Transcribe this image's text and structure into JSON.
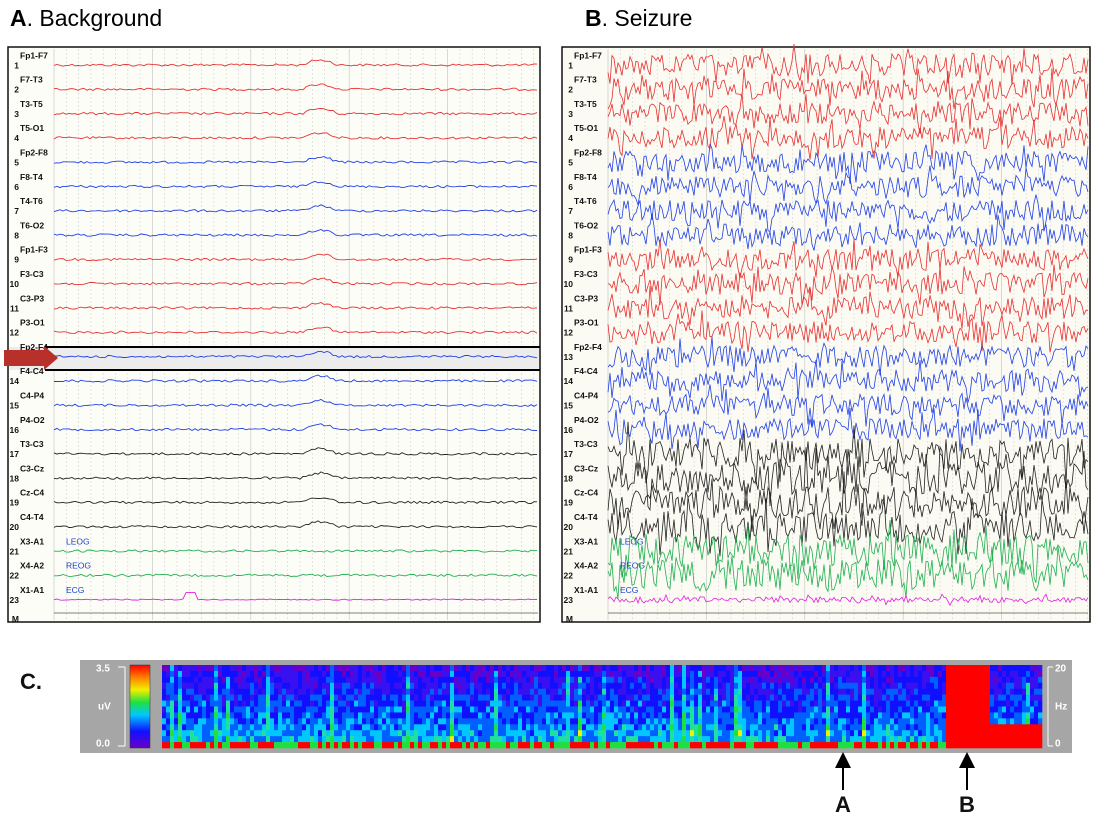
{
  "panel_a": {
    "letter": "A",
    "title": ". Background"
  },
  "panel_b": {
    "letter": "B",
    "title": ". Seizure"
  },
  "channels": [
    {
      "number": "1",
      "label": "Fp1-F7"
    },
    {
      "number": "2",
      "label": "F7-T3"
    },
    {
      "number": "3",
      "label": "T3-T5"
    },
    {
      "number": "4",
      "label": "T5-O1"
    },
    {
      "number": "5",
      "label": "Fp2-F8"
    },
    {
      "number": "6",
      "label": "F8-T4"
    },
    {
      "number": "7",
      "label": "T4-T6"
    },
    {
      "number": "8",
      "label": "T6-O2"
    },
    {
      "number": "9",
      "label": "Fp1-F3"
    },
    {
      "number": "10",
      "label": "F3-C3"
    },
    {
      "number": "11",
      "label": "C3-P3"
    },
    {
      "number": "12",
      "label": "P3-O1"
    },
    {
      "number": "13",
      "label": "Fp2-F4"
    },
    {
      "number": "14",
      "label": "F4-C4"
    },
    {
      "number": "15",
      "label": "C4-P4"
    },
    {
      "number": "16",
      "label": "P4-O2"
    },
    {
      "number": "17",
      "label": "T3-C3"
    },
    {
      "number": "18",
      "label": "C3-Cz"
    },
    {
      "number": "19",
      "label": "Cz-C4"
    },
    {
      "number": "20",
      "label": "C4-T4"
    },
    {
      "number": "21",
      "label": "X3-A1",
      "aux": "LEOG"
    },
    {
      "number": "22",
      "label": "X4-A2",
      "aux": "REOG"
    },
    {
      "number": "23",
      "label": "X1-A1",
      "aux": "ECG"
    }
  ],
  "marker_row": "M",
  "panel_c": {
    "letter": "C.",
    "scale_max": "3.5",
    "scale_unit": "uV",
    "scale_min": "0.0",
    "freq_max": "20",
    "freq_unit": "Hz",
    "freq_min": "0",
    "arrow_a": "A",
    "arrow_b": "B"
  }
}
